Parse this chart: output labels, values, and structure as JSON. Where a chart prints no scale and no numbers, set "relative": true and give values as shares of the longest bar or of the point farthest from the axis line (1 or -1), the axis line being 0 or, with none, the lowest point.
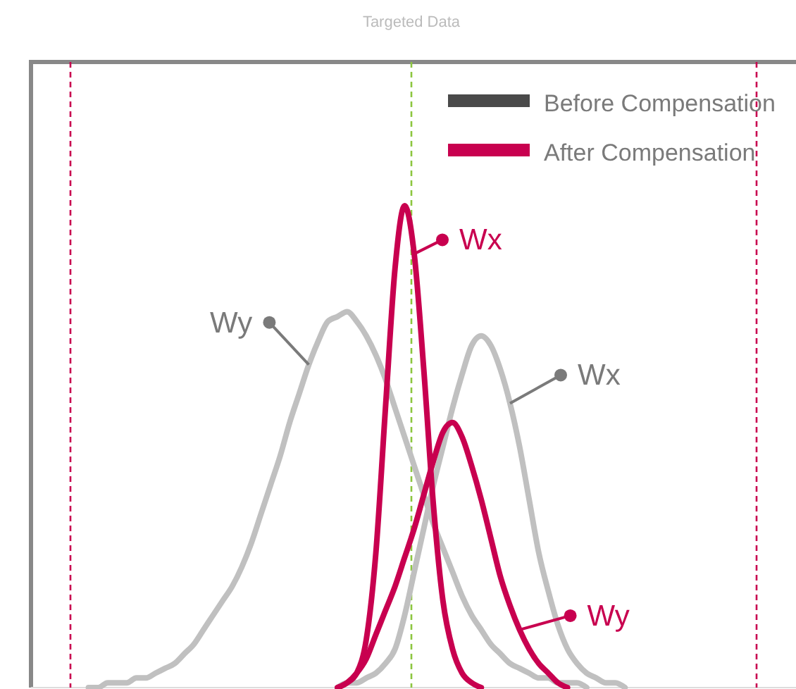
{
  "chart_data": {
    "type": "line",
    "title": "Targeted Data",
    "relative": true,
    "legend": "top right",
    "line_style": "solid",
    "marker": "none",
    "categories": [
      null,
      null,
      null,
      null,
      null,
      null,
      null,
      null,
      null,
      null,
      null,
      null,
      null,
      null,
      null,
      null,
      null,
      null,
      null,
      null,
      null,
      null,
      null,
      null,
      null,
      null,
      null,
      null,
      null,
      null,
      null,
      null,
      null,
      null,
      null,
      null,
      null,
      null,
      null,
      null,
      null,
      null,
      null,
      null,
      null,
      null,
      null,
      null,
      null,
      null,
      null,
      null,
      null,
      null,
      null,
      null,
      null,
      null,
      null,
      null,
      null,
      null,
      null,
      null,
      null,
      null,
      null,
      null,
      null,
      null,
      null,
      null,
      null,
      null,
      null,
      null,
      null,
      null,
      null,
      null,
      null
    ],
    "series": [
      {
        "name": "Wy",
        "color": "#c0c0c0",
        "values": [
          null,
          null,
          null,
          null,
          null,
          null,
          0,
          0,
          0.01,
          0.01,
          0.01,
          0.02,
          0.02,
          0.03,
          0.04,
          0.05,
          0.07,
          0.09,
          0.12,
          0.15,
          0.18,
          0.21,
          0.25,
          0.3,
          0.36,
          0.42,
          0.48,
          0.55,
          0.61,
          0.67,
          0.72,
          0.76,
          0.77,
          0.78,
          0.76,
          0.73,
          0.69,
          0.64,
          0.58,
          0.52,
          0.46,
          0.4,
          0.34,
          0.29,
          0.24,
          0.19,
          0.15,
          0.12,
          0.09,
          0.07,
          0.05,
          0.04,
          0.03,
          0.02,
          0.02,
          0.01,
          0.01,
          0.01,
          0,
          null,
          null,
          null,
          null,
          null,
          null,
          null,
          null,
          null,
          null,
          null,
          null,
          null,
          null,
          null,
          null,
          null,
          null,
          null,
          null,
          null,
          null
        ]
      },
      {
        "name": "Wx",
        "color": "#c0c0c0",
        "values": [
          null,
          null,
          null,
          null,
          null,
          null,
          null,
          null,
          null,
          null,
          null,
          null,
          null,
          null,
          null,
          null,
          null,
          null,
          null,
          null,
          null,
          null,
          null,
          null,
          null,
          null,
          null,
          null,
          null,
          null,
          null,
          null,
          0,
          0.01,
          0.01,
          0.02,
          0.03,
          0.05,
          0.08,
          0.15,
          0.24,
          0.33,
          0.42,
          0.5,
          0.58,
          0.65,
          0.71,
          0.73,
          0.71,
          0.66,
          0.59,
          0.5,
          0.39,
          0.28,
          0.2,
          0.13,
          0.08,
          0.05,
          0.03,
          0.02,
          0.01,
          0.01,
          0,
          null,
          null,
          null,
          null,
          null,
          null,
          null,
          null,
          null,
          null,
          null,
          null,
          null,
          null,
          null,
          null,
          null,
          null
        ]
      },
      {
        "name": "Wx",
        "color": "#c8004f",
        "values": [
          null,
          null,
          null,
          null,
          null,
          null,
          null,
          null,
          null,
          null,
          null,
          null,
          null,
          null,
          null,
          null,
          null,
          null,
          null,
          null,
          null,
          null,
          null,
          null,
          null,
          null,
          null,
          null,
          null,
          null,
          null,
          null,
          0,
          0.01,
          0.03,
          0.1,
          0.28,
          0.58,
          0.87,
          1,
          0.9,
          0.66,
          0.38,
          0.18,
          0.08,
          0.03,
          0.01,
          0,
          null,
          null,
          null,
          null,
          null,
          null,
          null,
          null,
          null,
          null,
          null,
          null,
          null,
          null,
          null,
          null,
          null,
          null,
          null,
          null,
          null,
          null,
          null,
          null,
          null,
          null,
          null,
          null,
          null,
          null,
          null,
          null,
          null
        ]
      },
      {
        "name": "Wy",
        "color": "#c8004f",
        "values": [
          null,
          null,
          null,
          null,
          null,
          null,
          null,
          null,
          null,
          null,
          null,
          null,
          null,
          null,
          null,
          null,
          null,
          null,
          null,
          null,
          null,
          null,
          null,
          null,
          null,
          null,
          null,
          null,
          null,
          null,
          null,
          null,
          0,
          0.01,
          0.03,
          0.06,
          0.11,
          0.16,
          0.21,
          0.27,
          0.33,
          0.4,
          0.47,
          0.53,
          0.55,
          0.52,
          0.46,
          0.39,
          0.31,
          0.23,
          0.17,
          0.12,
          0.08,
          0.05,
          0.03,
          0.01,
          0,
          null,
          null,
          null,
          null,
          null,
          null,
          null,
          null,
          null,
          null,
          null,
          null,
          null,
          null,
          null,
          null,
          null,
          null,
          null,
          null,
          null,
          null,
          null,
          null
        ]
      }
    ],
    "annotations": [
      "Before Compensation",
      "After Compensation"
    ]
  }
}
